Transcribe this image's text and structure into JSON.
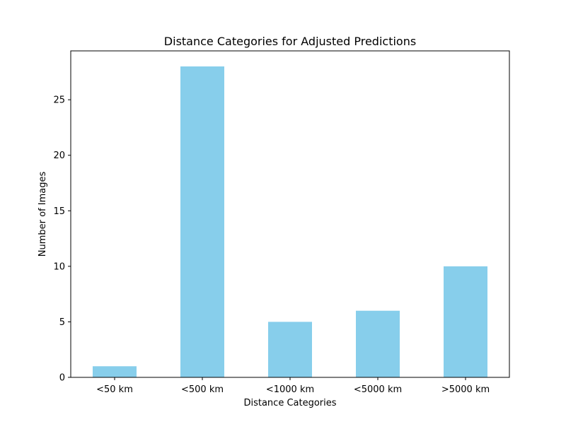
{
  "chart_data": {
    "type": "bar",
    "title": "Distance Categories for Adjusted Predictions",
    "xlabel": "Distance Categories",
    "ylabel": "Number of Images",
    "categories": [
      "<50 km",
      "<500 km",
      "<1000 km",
      "<5000 km",
      ">5000 km"
    ],
    "values": [
      1,
      28,
      5,
      6,
      10
    ],
    "ylim": [
      0,
      29.4
    ],
    "yticks": [
      0,
      5,
      10,
      15,
      20,
      25
    ],
    "grid": false,
    "bar_color": "#87ceeb"
  }
}
